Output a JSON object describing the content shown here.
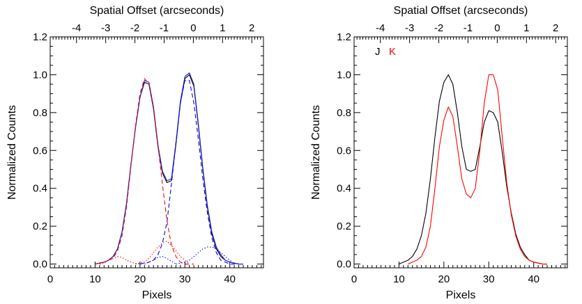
{
  "chart_data": [
    {
      "type": "line",
      "xlabel": "Pixels",
      "ylabel": "Normalized Counts",
      "top_xlabel": "Spatial Offset (arcseconds)",
      "xlim": [
        0,
        47.5
      ],
      "ylim": [
        -0.02,
        1.2
      ],
      "top_xlim": [
        -4.9,
        2.4
      ],
      "x_ticks": [
        0,
        10,
        20,
        30,
        40
      ],
      "y_ticks": [
        "0.0",
        "0.2",
        "0.4",
        "0.6",
        "0.8",
        "1.0",
        "1.2"
      ],
      "top_ticks": [
        "-4",
        "-3",
        "-2",
        "-1",
        "0",
        "1",
        "2"
      ],
      "series": [
        {
          "color": "#000000",
          "style": "solid",
          "x": [
            10,
            11,
            12,
            13,
            14,
            15,
            16,
            17,
            18,
            19,
            20,
            21,
            22,
            23,
            24,
            25,
            26,
            27,
            28,
            29,
            30,
            31,
            32,
            33,
            34,
            35,
            36,
            37,
            38,
            39,
            40,
            41,
            42,
            43
          ],
          "y": [
            0.0,
            0.005,
            0.01,
            0.02,
            0.04,
            0.08,
            0.17,
            0.32,
            0.53,
            0.72,
            0.88,
            0.96,
            0.95,
            0.82,
            0.62,
            0.48,
            0.43,
            0.44,
            0.63,
            0.85,
            0.98,
            1.0,
            0.94,
            0.73,
            0.5,
            0.3,
            0.16,
            0.08,
            0.04,
            0.02,
            0.01,
            0.005,
            0.0,
            0.0
          ]
        },
        {
          "color": "#2020c0",
          "style": "solid",
          "x": [
            10,
            11,
            12,
            13,
            14,
            15,
            16,
            17,
            18,
            19,
            20,
            21,
            22,
            23,
            24,
            25,
            26,
            27,
            28,
            29,
            30,
            31,
            32,
            33,
            34,
            35,
            36,
            37,
            38,
            39,
            40,
            41,
            42,
            43
          ],
          "y": [
            0.0,
            0.005,
            0.01,
            0.02,
            0.04,
            0.08,
            0.17,
            0.32,
            0.53,
            0.72,
            0.88,
            0.97,
            0.96,
            0.83,
            0.63,
            0.49,
            0.44,
            0.45,
            0.64,
            0.86,
            0.99,
            1.01,
            0.95,
            0.74,
            0.51,
            0.31,
            0.17,
            0.09,
            0.05,
            0.02,
            0.01,
            0.005,
            0.0,
            0.0
          ]
        },
        {
          "color": "#ff0000",
          "style": "dashed",
          "x": [
            10,
            12,
            14,
            15,
            16,
            17,
            18,
            19,
            20,
            21,
            22,
            23,
            24,
            25,
            26,
            27,
            28,
            29,
            30,
            32
          ],
          "y": [
            0.0,
            0.01,
            0.03,
            0.07,
            0.15,
            0.3,
            0.52,
            0.73,
            0.9,
            0.98,
            0.95,
            0.83,
            0.63,
            0.42,
            0.23,
            0.1,
            0.04,
            0.01,
            0.0,
            0.0
          ]
        },
        {
          "color": "#0000ff",
          "style": "dashed",
          "x": [
            20,
            22,
            23,
            24,
            25,
            26,
            27,
            28,
            29,
            30,
            31,
            32,
            33,
            34,
            35,
            36,
            37,
            38,
            39,
            40,
            42
          ],
          "y": [
            0.0,
            0.01,
            0.02,
            0.05,
            0.11,
            0.22,
            0.42,
            0.64,
            0.85,
            0.97,
            0.97,
            0.85,
            0.66,
            0.45,
            0.27,
            0.14,
            0.06,
            0.02,
            0.01,
            0.0,
            0.0
          ]
        },
        {
          "color": "#ff0000",
          "style": "dotted",
          "x": [
            11,
            12,
            13,
            14,
            15,
            16,
            17,
            18,
            19,
            20
          ],
          "y": [
            0.0,
            0.005,
            0.02,
            0.03,
            0.04,
            0.035,
            0.02,
            0.01,
            0.003,
            0.0
          ]
        },
        {
          "color": "#ff0000",
          "style": "dotted",
          "x": [
            19,
            21,
            22,
            23,
            24,
            25,
            26,
            27,
            28,
            29,
            30,
            31
          ],
          "y": [
            0.0,
            0.01,
            0.03,
            0.06,
            0.09,
            0.11,
            0.12,
            0.1,
            0.07,
            0.04,
            0.02,
            0.0
          ]
        },
        {
          "color": "#0000ff",
          "style": "dotted",
          "x": [
            21,
            22,
            23,
            24,
            25,
            26,
            27,
            28
          ],
          "y": [
            0.0,
            0.01,
            0.02,
            0.035,
            0.04,
            0.03,
            0.015,
            0.0
          ]
        },
        {
          "color": "#0000ff",
          "style": "dotted",
          "x": [
            28,
            30,
            31,
            32,
            33,
            34,
            35,
            36,
            37,
            38,
            39,
            40,
            41
          ],
          "y": [
            0.0,
            0.01,
            0.02,
            0.04,
            0.06,
            0.08,
            0.09,
            0.09,
            0.08,
            0.06,
            0.04,
            0.02,
            0.0
          ]
        }
      ]
    },
    {
      "type": "line",
      "xlabel": "Pixels",
      "ylabel": "Normalized Counts",
      "top_xlabel": "Spatial Offset (arcseconds)",
      "xlim": [
        0,
        47.5
      ],
      "ylim": [
        -0.02,
        1.2
      ],
      "top_xlim": [
        -4.9,
        2.4
      ],
      "x_ticks": [
        0,
        10,
        20,
        30,
        40
      ],
      "y_ticks": [
        "0.0",
        "0.2",
        "0.4",
        "0.6",
        "0.8",
        "1.0",
        "1.2"
      ],
      "top_ticks": [
        "-4",
        "-3",
        "-2",
        "-1",
        "0",
        "1",
        "2"
      ],
      "legend": [
        {
          "label": "J",
          "color": "#000000"
        },
        {
          "label": "K",
          "color": "#ff0000"
        }
      ],
      "series": [
        {
          "name": "J",
          "color": "#000000",
          "style": "solid",
          "x": [
            10,
            11,
            12,
            13,
            14,
            15,
            16,
            17,
            18,
            19,
            20,
            21,
            22,
            23,
            24,
            25,
            26,
            27,
            28,
            29,
            30,
            31,
            32,
            33,
            34,
            35,
            36,
            37,
            38,
            39,
            40,
            41,
            42,
            43
          ],
          "y": [
            0.0,
            0.01,
            0.02,
            0.04,
            0.08,
            0.15,
            0.27,
            0.45,
            0.67,
            0.86,
            0.96,
            1.0,
            0.95,
            0.8,
            0.62,
            0.5,
            0.49,
            0.5,
            0.62,
            0.75,
            0.81,
            0.8,
            0.75,
            0.59,
            0.41,
            0.27,
            0.16,
            0.09,
            0.05,
            0.02,
            0.01,
            0.005,
            0.0,
            0.0
          ]
        },
        {
          "name": "K",
          "color": "#ff0000",
          "style": "solid",
          "x": [
            12,
            13,
            14,
            15,
            16,
            17,
            18,
            19,
            20,
            21,
            22,
            23,
            24,
            25,
            26,
            27,
            28,
            29,
            30,
            31,
            32,
            33,
            34,
            35,
            36,
            37,
            38,
            39,
            40,
            41,
            42,
            43
          ],
          "y": [
            0.0,
            0.01,
            0.02,
            0.04,
            0.09,
            0.2,
            0.4,
            0.62,
            0.76,
            0.83,
            0.78,
            0.62,
            0.45,
            0.37,
            0.35,
            0.4,
            0.6,
            0.85,
            1.0,
            1.0,
            0.92,
            0.67,
            0.43,
            0.26,
            0.15,
            0.08,
            0.04,
            0.02,
            0.01,
            0.005,
            0.0,
            0.0
          ]
        }
      ]
    }
  ]
}
